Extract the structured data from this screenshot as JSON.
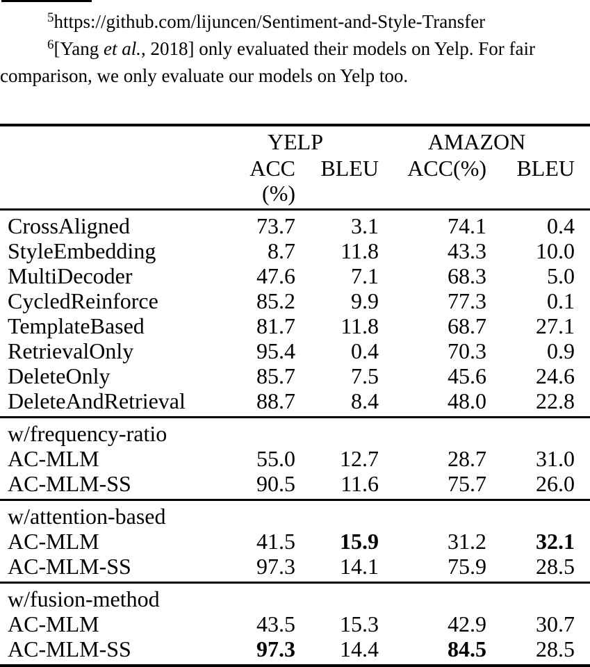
{
  "footnotes": {
    "f5": {
      "marker": "5",
      "text": "https://github.com/lijuncen/Sentiment-and-Style-Transfer"
    },
    "f6": {
      "marker": "6",
      "line1_pre": "[Yang ",
      "line1_italic": "et al.",
      "line1_post": ", 2018] only evaluated their models on Yelp. For fair",
      "line2": "comparison, we only evaluate our models on Yelp too."
    }
  },
  "table": {
    "groups": [
      "YELP",
      "AMAZON"
    ],
    "sub_headers": [
      "ACC (%)",
      "BLEU",
      "ACC(%)",
      "BLEU"
    ],
    "sections": [
      {
        "header": null,
        "rows": [
          {
            "label": "CrossAligned",
            "values": [
              "73.7",
              "3.1",
              "74.1",
              "0.4"
            ],
            "bold": [
              false,
              false,
              false,
              false
            ]
          },
          {
            "label": "StyleEmbedding",
            "values": [
              "8.7",
              "11.8",
              "43.3",
              "10.0"
            ],
            "bold": [
              false,
              false,
              false,
              false
            ]
          },
          {
            "label": "MultiDecoder",
            "values": [
              "47.6",
              "7.1",
              "68.3",
              "5.0"
            ],
            "bold": [
              false,
              false,
              false,
              false
            ]
          },
          {
            "label": "CycledReinforce",
            "values": [
              "85.2",
              "9.9",
              "77.3",
              "0.1"
            ],
            "bold": [
              false,
              false,
              false,
              false
            ]
          },
          {
            "label": "TemplateBased",
            "values": [
              "81.7",
              "11.8",
              "68.7",
              "27.1"
            ],
            "bold": [
              false,
              false,
              false,
              false
            ]
          },
          {
            "label": "RetrievalOnly",
            "values": [
              "95.4",
              "0.4",
              "70.3",
              "0.9"
            ],
            "bold": [
              false,
              false,
              false,
              false
            ]
          },
          {
            "label": "DeleteOnly",
            "values": [
              "85.7",
              "7.5",
              "45.6",
              "24.6"
            ],
            "bold": [
              false,
              false,
              false,
              false
            ]
          },
          {
            "label": "DeleteAndRetrieval",
            "values": [
              "88.7",
              "8.4",
              "48.0",
              "22.8"
            ],
            "bold": [
              false,
              false,
              false,
              false
            ]
          }
        ]
      },
      {
        "header": "w/frequency-ratio",
        "rows": [
          {
            "label": "AC-MLM",
            "values": [
              "55.0",
              "12.7",
              "28.7",
              "31.0"
            ],
            "bold": [
              false,
              false,
              false,
              false
            ]
          },
          {
            "label": "AC-MLM-SS",
            "values": [
              "90.5",
              "11.6",
              "75.7",
              "26.0"
            ],
            "bold": [
              false,
              false,
              false,
              false
            ]
          }
        ]
      },
      {
        "header": "w/attention-based",
        "rows": [
          {
            "label": "AC-MLM",
            "values": [
              "41.5",
              "15.9",
              "31.2",
              "32.1"
            ],
            "bold": [
              false,
              true,
              false,
              true
            ]
          },
          {
            "label": "AC-MLM-SS",
            "values": [
              "97.3",
              "14.1",
              "75.9",
              "28.5"
            ],
            "bold": [
              false,
              false,
              false,
              false
            ]
          }
        ]
      },
      {
        "header": "w/fusion-method",
        "rows": [
          {
            "label": "AC-MLM",
            "values": [
              "43.5",
              "15.3",
              "42.9",
              "30.7"
            ],
            "bold": [
              false,
              false,
              false,
              false
            ]
          },
          {
            "label": "AC-MLM-SS",
            "values": [
              "97.3",
              "14.4",
              "84.5",
              "28.5"
            ],
            "bold": [
              true,
              false,
              true,
              false
            ]
          }
        ]
      }
    ]
  }
}
